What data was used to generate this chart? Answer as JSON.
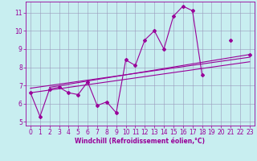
{
  "x_data": [
    0,
    1,
    2,
    3,
    4,
    5,
    6,
    7,
    8,
    9,
    10,
    11,
    12,
    13,
    14,
    15,
    16,
    17,
    18,
    19,
    20,
    21,
    22,
    23
  ],
  "main_line": [
    6.6,
    5.3,
    6.8,
    6.9,
    6.6,
    6.5,
    7.2,
    5.9,
    6.1,
    5.5,
    8.4,
    8.1,
    9.5,
    10.0,
    9.0,
    10.8,
    11.35,
    11.1,
    7.6,
    null,
    null,
    9.5,
    null,
    8.7
  ],
  "trend_lines": [
    {
      "x": [
        0,
        23
      ],
      "y": [
        6.6,
        8.3
      ]
    },
    {
      "x": [
        0,
        23
      ],
      "y": [
        6.85,
        8.55
      ]
    },
    {
      "x": [
        2,
        23
      ],
      "y": [
        6.9,
        8.7
      ]
    }
  ],
  "line_color": "#990099",
  "bg_color": "#c8eef0",
  "grid_color": "#9999bb",
  "xlabel": "Windchill (Refroidissement éolien,°C)",
  "xlim": [
    -0.5,
    23.5
  ],
  "ylim": [
    4.8,
    11.6
  ],
  "yticks": [
    5,
    6,
    7,
    8,
    9,
    10,
    11
  ],
  "xticks": [
    0,
    1,
    2,
    3,
    4,
    5,
    6,
    7,
    8,
    9,
    10,
    11,
    12,
    13,
    14,
    15,
    16,
    17,
    18,
    19,
    20,
    21,
    22,
    23
  ],
  "tick_fontsize": 5.5,
  "xlabel_fontsize": 5.5
}
